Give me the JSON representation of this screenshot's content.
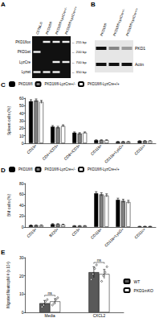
{
  "chart_data": [
    {
      "type": "bar",
      "title": "C",
      "ylabel": "Spleen cells (%)",
      "categories": [
        "CD19+",
        "CD4+/CD3+",
        "CD8+/CD3+",
        "CD11b+",
        "CD11b+Ly6G+",
        "CD11c+"
      ],
      "series": [
        {
          "name": "PKD1fl/fl",
          "color": "#000000",
          "values": [
            56,
            22,
            14,
            4,
            2,
            3
          ],
          "errors": [
            2,
            1.5,
            1,
            0.5,
            0.4,
            0.4
          ]
        },
        {
          "name": "PKD1fl/fl-LyzCre+/-",
          "color": "#808080",
          "values": [
            57,
            21,
            13,
            4,
            2,
            3
          ],
          "errors": [
            2,
            1.5,
            1,
            0.5,
            0.4,
            0.4
          ]
        },
        {
          "name": "PKD1fl/fl-LyzCre+/+",
          "color": "#ffffff",
          "values": [
            55,
            23,
            14,
            4,
            2,
            3
          ],
          "errors": [
            2,
            1.5,
            1,
            0.5,
            0.4,
            0.4
          ]
        }
      ],
      "ylim": [
        0,
        60
      ],
      "yticks": [
        0,
        10,
        20,
        30,
        40,
        50,
        60
      ],
      "grid": false,
      "legend": "top"
    },
    {
      "type": "bar",
      "title": "D",
      "ylabel": "BM cells (%)",
      "categories": [
        "CD19+",
        "B220+",
        "CD3+",
        "CD11b+",
        "CD11b+Ly6G+",
        "CD11c+"
      ],
      "series": [
        {
          "name": "PKD1fl/fl",
          "color": "#000000",
          "values": [
            3,
            5,
            2,
            62,
            50,
            1
          ],
          "errors": [
            0.5,
            1,
            0.5,
            3,
            3,
            0.3
          ]
        },
        {
          "name": "PKD1fl/fl-LyzCre+/-",
          "color": "#808080",
          "values": [
            3,
            5,
            2,
            60,
            48,
            1
          ],
          "errors": [
            0.5,
            1,
            0.5,
            3,
            3,
            0.3
          ]
        },
        {
          "name": "PKD1fl/fl-LyzCre+/+",
          "color": "#ffffff",
          "values": [
            3,
            4,
            2,
            58,
            46,
            1
          ],
          "errors": [
            0.5,
            1,
            0.5,
            3,
            3,
            0.3
          ]
        }
      ],
      "ylim": [
        0,
        80
      ],
      "yticks": [
        0,
        20,
        40,
        60,
        80
      ],
      "grid": false,
      "legend": "top"
    },
    {
      "type": "bar",
      "title": "E",
      "ylabel": "Migrated Neutrophil # (x 10⁴)",
      "categories": [
        "Media",
        "CXCL2"
      ],
      "series": [
        {
          "name": "WT",
          "color": "#595959",
          "values": [
            5,
            22
          ],
          "errors": [
            1.5,
            3
          ],
          "points": [
            [
              3,
              4,
              6,
              7
            ],
            [
              18,
              21,
              24,
              26
            ]
          ]
        },
        {
          "name": "PKD1mKO",
          "color": "#ffffff",
          "values": [
            6,
            21
          ],
          "errors": [
            1.5,
            2.5
          ],
          "points": [
            [
              4,
              5,
              7,
              8
            ],
            [
              17,
              20,
              22,
              25
            ]
          ]
        }
      ],
      "annotations": [
        {
          "category": "Media",
          "text": "ns"
        },
        {
          "category": "CXCL2",
          "text": "ns"
        }
      ],
      "ylim": [
        0,
        30
      ],
      "yticks": [
        0,
        10,
        20,
        30
      ],
      "grid": false,
      "legend": "right"
    }
  ],
  "gel": {
    "panel": "A",
    "lanes": [
      "C57BL/6",
      "PKD1fl/fl",
      "PKD1fl/fl-LyzCre+/-",
      "PKD1fl/fl-LyzCre+/+"
    ],
    "bands": [
      {
        "label": "PKD1flox",
        "size": "← 255 bp",
        "present": [
          false,
          true,
          true,
          true
        ]
      },
      {
        "label": "PKD1wt",
        "size": "← 200 bp",
        "present": [
          true,
          false,
          false,
          false
        ]
      },
      {
        "label": "LyzCre",
        "size": "← 700 bp",
        "present": [
          false,
          false,
          true,
          true
        ]
      },
      {
        "label": "Lyzwt",
        "size": "← 350 bp",
        "present": [
          true,
          true,
          true,
          false
        ]
      }
    ]
  },
  "blot": {
    "panel": "B",
    "lanes": [
      "PKD1fl/fl",
      "PKD1fl/fl-LyzCre+/-",
      "PKD1fl/fl-LyzCre+/+"
    ],
    "rows": [
      {
        "label": "PKD1",
        "intensity": [
          1,
          0.45,
          0.35
        ]
      },
      {
        "label": "Actin",
        "intensity": [
          1,
          1,
          1
        ]
      }
    ]
  }
}
